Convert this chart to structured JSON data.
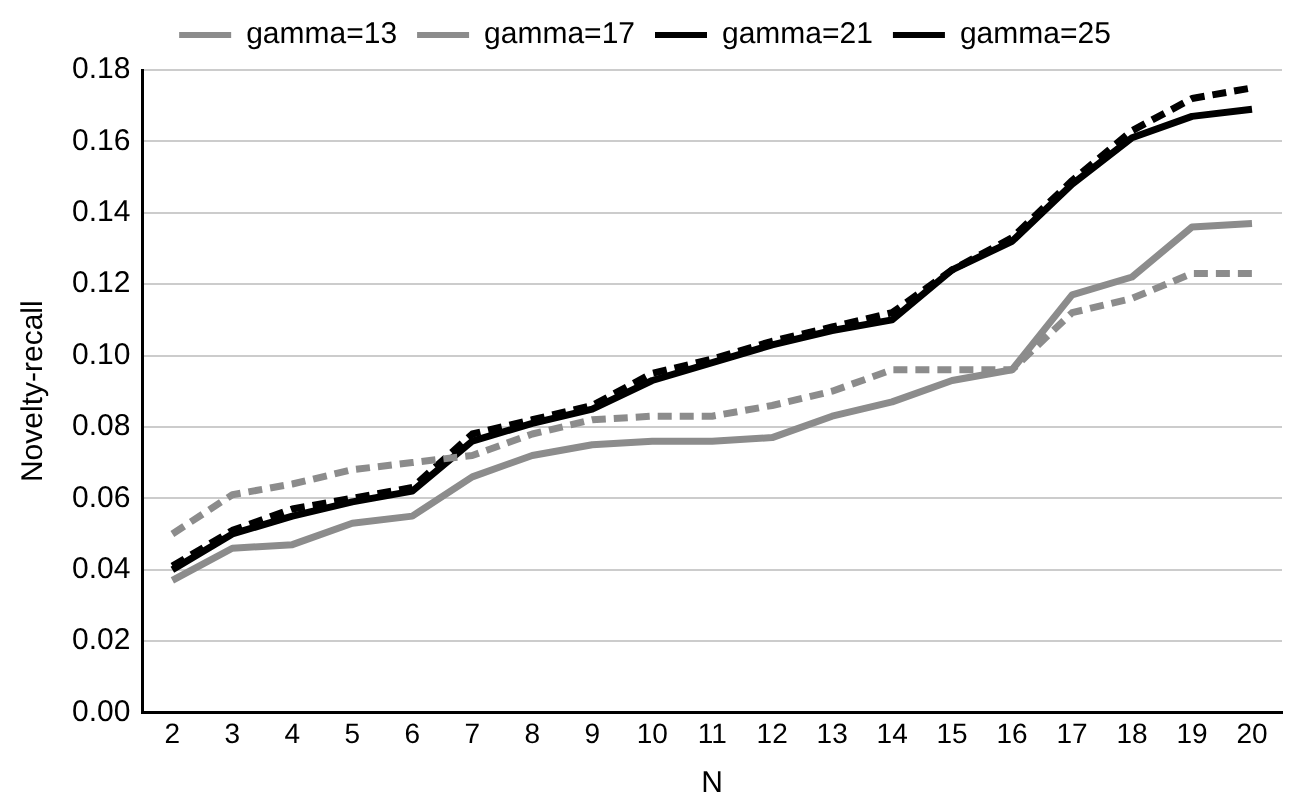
{
  "chart_data": {
    "type": "line",
    "xlabel": "N",
    "ylabel": "Novelty-recall",
    "categories": [
      "2",
      "3",
      "4",
      "5",
      "6",
      "7",
      "8",
      "9",
      "10",
      "11",
      "12",
      "13",
      "14",
      "15",
      "16",
      "17",
      "18",
      "19",
      "20"
    ],
    "series": [
      {
        "name": "gamma=13",
        "color": "#8c8c8c",
        "line_style": "dashed",
        "values": [
          0.05,
          0.061,
          0.064,
          0.068,
          0.07,
          0.072,
          0.078,
          0.082,
          0.083,
          0.083,
          0.086,
          0.09,
          0.096,
          0.096,
          0.096,
          0.112,
          0.116,
          0.123,
          0.123
        ]
      },
      {
        "name": "gamma=17",
        "color": "#8c8c8c",
        "line_style": "solid",
        "values": [
          0.037,
          0.046,
          0.047,
          0.053,
          0.055,
          0.066,
          0.072,
          0.075,
          0.076,
          0.076,
          0.077,
          0.083,
          0.087,
          0.093,
          0.096,
          0.117,
          0.122,
          0.136,
          0.137
        ]
      },
      {
        "name": "gamma=21",
        "color": "#000000",
        "line_style": "dashed",
        "values": [
          0.041,
          0.051,
          0.057,
          0.06,
          0.063,
          0.078,
          0.082,
          0.086,
          0.095,
          0.099,
          0.104,
          0.108,
          0.112,
          0.124,
          0.133,
          0.149,
          0.163,
          0.172,
          0.175
        ]
      },
      {
        "name": "gamma=25",
        "color": "#000000",
        "line_style": "solid",
        "values": [
          0.04,
          0.05,
          0.055,
          0.059,
          0.062,
          0.076,
          0.081,
          0.085,
          0.093,
          0.098,
          0.103,
          0.107,
          0.11,
          0.124,
          0.132,
          0.148,
          0.161,
          0.167,
          0.169
        ]
      }
    ],
    "ylim": [
      0,
      0.18
    ],
    "yticks": [
      {
        "value": 0,
        "label": "0.00"
      },
      {
        "value": 0.02,
        "label": "0.02"
      },
      {
        "value": 0.04,
        "label": "0.04"
      },
      {
        "value": 0.06,
        "label": "0.06"
      },
      {
        "value": 0.08,
        "label": "0.08"
      },
      {
        "value": 0.1,
        "label": "0.10"
      },
      {
        "value": 0.12,
        "label": "0.12"
      },
      {
        "value": 0.14,
        "label": "0.14"
      },
      {
        "value": 0.16,
        "label": "0.16"
      },
      {
        "value": 0.18,
        "label": "0.18"
      }
    ],
    "grid": "y",
    "legend": "top",
    "marker": "none"
  }
}
